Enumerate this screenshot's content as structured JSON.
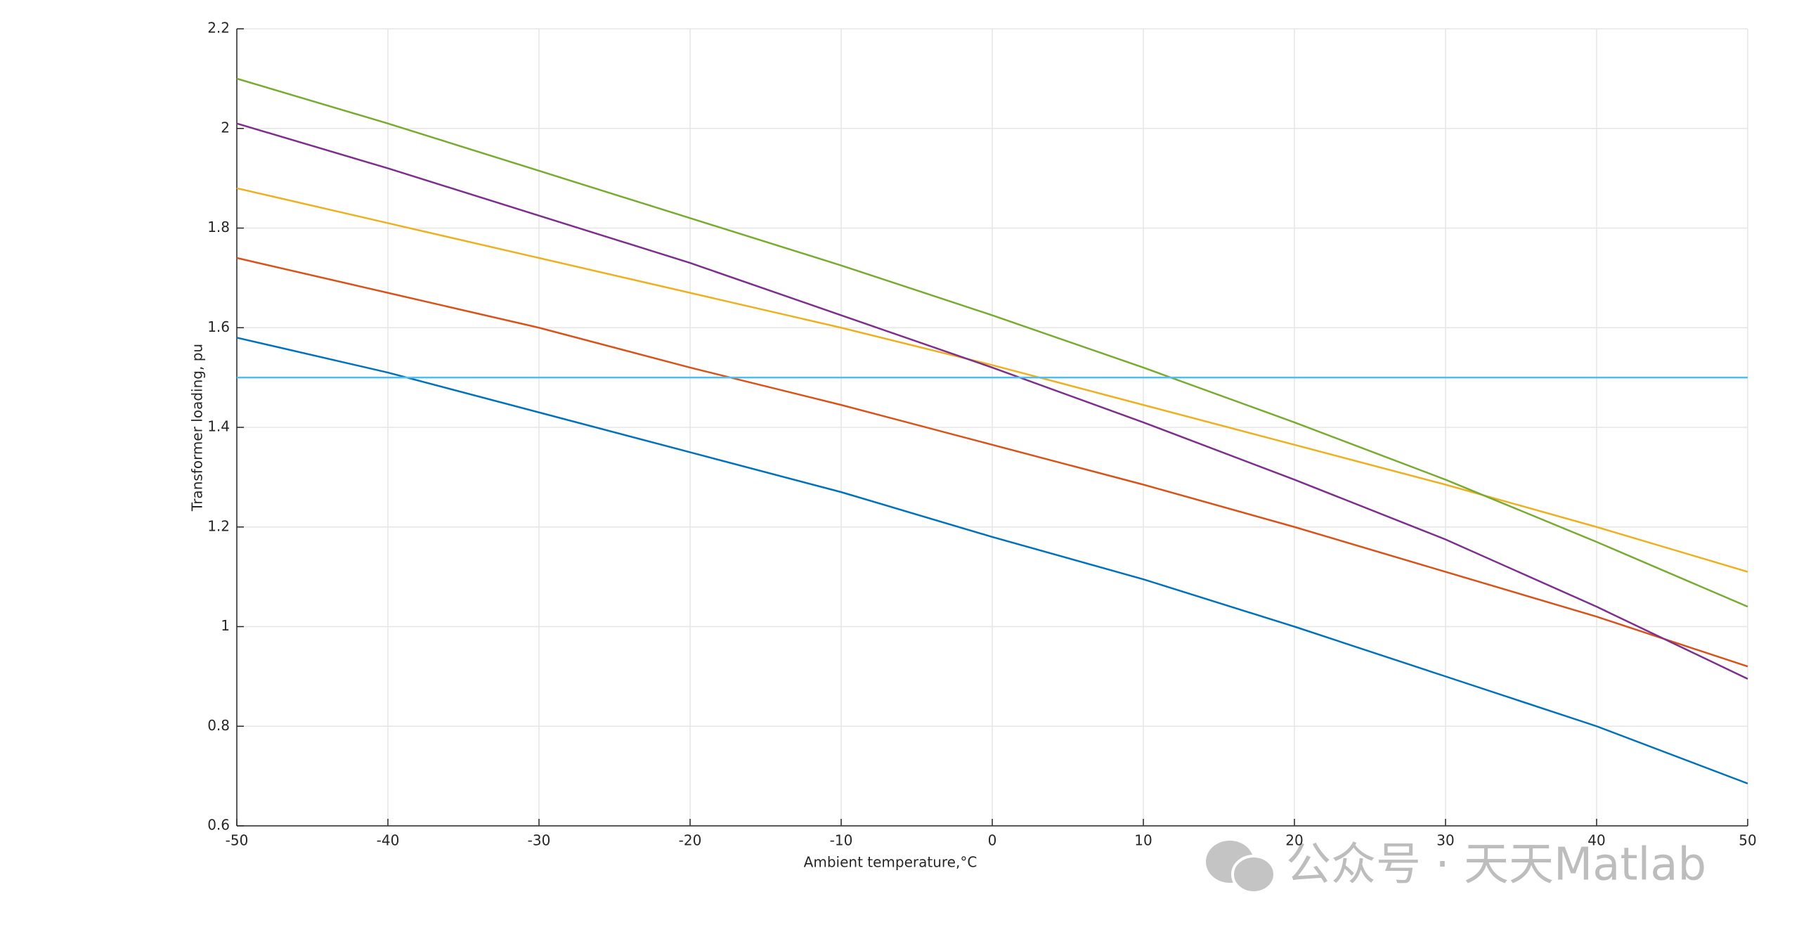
{
  "chart_data": {
    "type": "line",
    "x_label": "Ambient temperature,°C",
    "y_label": "Transformer loading, pu",
    "x": [
      -50,
      -40,
      -30,
      -20,
      -10,
      0,
      10,
      20,
      30,
      40,
      50
    ],
    "series": [
      {
        "color": "#0072bd",
        "values": [
          1.58,
          1.51,
          1.43,
          1.35,
          1.27,
          1.18,
          1.095,
          1.0,
          0.9,
          0.8,
          0.685
        ]
      },
      {
        "color": "#d95319",
        "values": [
          1.74,
          1.67,
          1.6,
          1.52,
          1.445,
          1.365,
          1.285,
          1.2,
          1.11,
          1.02,
          0.92
        ]
      },
      {
        "color": "#edb120",
        "values": [
          1.88,
          1.81,
          1.74,
          1.67,
          1.6,
          1.525,
          1.445,
          1.365,
          1.285,
          1.2,
          1.11
        ]
      },
      {
        "color": "#7e2f8e",
        "values": [
          2.01,
          1.92,
          1.825,
          1.73,
          1.625,
          1.52,
          1.41,
          1.295,
          1.175,
          1.04,
          0.895
        ]
      },
      {
        "color": "#77ac30",
        "values": [
          2.1,
          2.01,
          1.915,
          1.82,
          1.725,
          1.625,
          1.52,
          1.41,
          1.295,
          1.17,
          1.04
        ]
      },
      {
        "color": "#4dbeee",
        "values": [
          1.5,
          1.5,
          1.5,
          1.5,
          1.5,
          1.5,
          1.5,
          1.5,
          1.5,
          1.5,
          1.5
        ]
      }
    ],
    "xlim": [
      -50,
      50
    ],
    "xticks": [
      -50,
      -40,
      -30,
      -20,
      -10,
      0,
      10,
      20,
      30,
      40,
      50
    ],
    "ylim": [
      0.6,
      2.2
    ],
    "yticks": [
      0.6,
      0.8,
      1,
      1.2,
      1.4,
      1.6,
      1.8,
      2,
      2.2
    ],
    "grid": true
  },
  "watermark": "公众号 · 天天Matlab"
}
